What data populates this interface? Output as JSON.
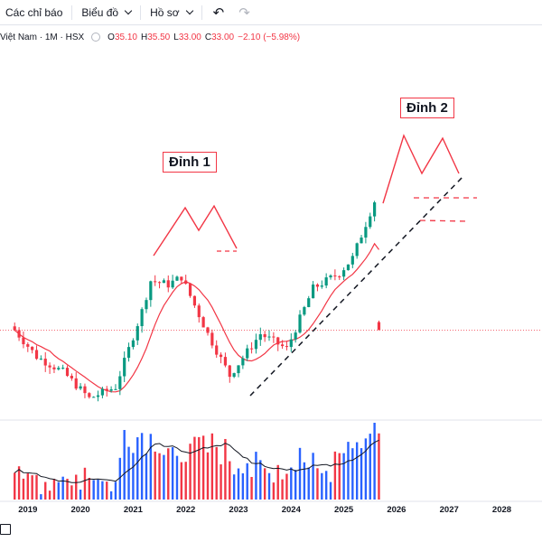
{
  "toolbar": {
    "indicators_label": "Các chỉ báo",
    "chart_label": "Biểu đồ",
    "profile_label": "Hồ sơ",
    "undo_icon": "undo-icon",
    "redo_icon": "redo-icon"
  },
  "legend": {
    "symbol": "Việt Nam · 1M · HSX",
    "o_label": "O",
    "o_value": "35.10",
    "h_label": "H",
    "h_value": "35.50",
    "l_label": "L",
    "l_value": "33.00",
    "c_label": "C",
    "c_value": "33.00",
    "change": "−2.10 (−5.98%)"
  },
  "colors": {
    "up": "#089981",
    "down": "#f23645",
    "accent": "#f23645",
    "vol_up": "#2962ff",
    "vol_down": "#f23645",
    "trend": "#131722"
  },
  "annotations": {
    "peak1": "Đỉnh 1",
    "peak2": "Đỉnh 2"
  },
  "chart_data": {
    "type": "candlestick",
    "timeframe": "1M",
    "x_ticks": [
      "2019",
      "2020",
      "2021",
      "2022",
      "2023",
      "2024",
      "2025",
      "2026",
      "2027",
      "2028"
    ],
    "last_bar": {
      "open": 35.1,
      "high": 35.5,
      "low": 33.0,
      "close": 33.0
    },
    "price_trend": [
      {
        "date": "2018-10",
        "close": 33
      },
      {
        "date": "2019-03",
        "close": 26
      },
      {
        "date": "2019-09",
        "close": 22
      },
      {
        "date": "2020-03",
        "close": 15
      },
      {
        "date": "2020-09",
        "close": 18
      },
      {
        "date": "2021-03",
        "close": 38
      },
      {
        "date": "2021-05",
        "close": 46
      },
      {
        "date": "2021-09",
        "close": 45
      },
      {
        "date": "2021-12",
        "close": 47
      },
      {
        "date": "2022-06",
        "close": 32
      },
      {
        "date": "2022-11",
        "close": 21
      },
      {
        "date": "2023-06",
        "close": 32
      },
      {
        "date": "2023-12",
        "close": 28
      },
      {
        "date": "2024-06",
        "close": 44
      },
      {
        "date": "2024-12",
        "close": 48
      },
      {
        "date": "2025-03",
        "close": 52
      },
      {
        "date": "2025-06",
        "close": 61
      },
      {
        "date": "2025-08",
        "close": 67
      },
      {
        "date": "2025-09",
        "close": 33
      }
    ],
    "moving_average": true,
    "volume_panel": true
  }
}
